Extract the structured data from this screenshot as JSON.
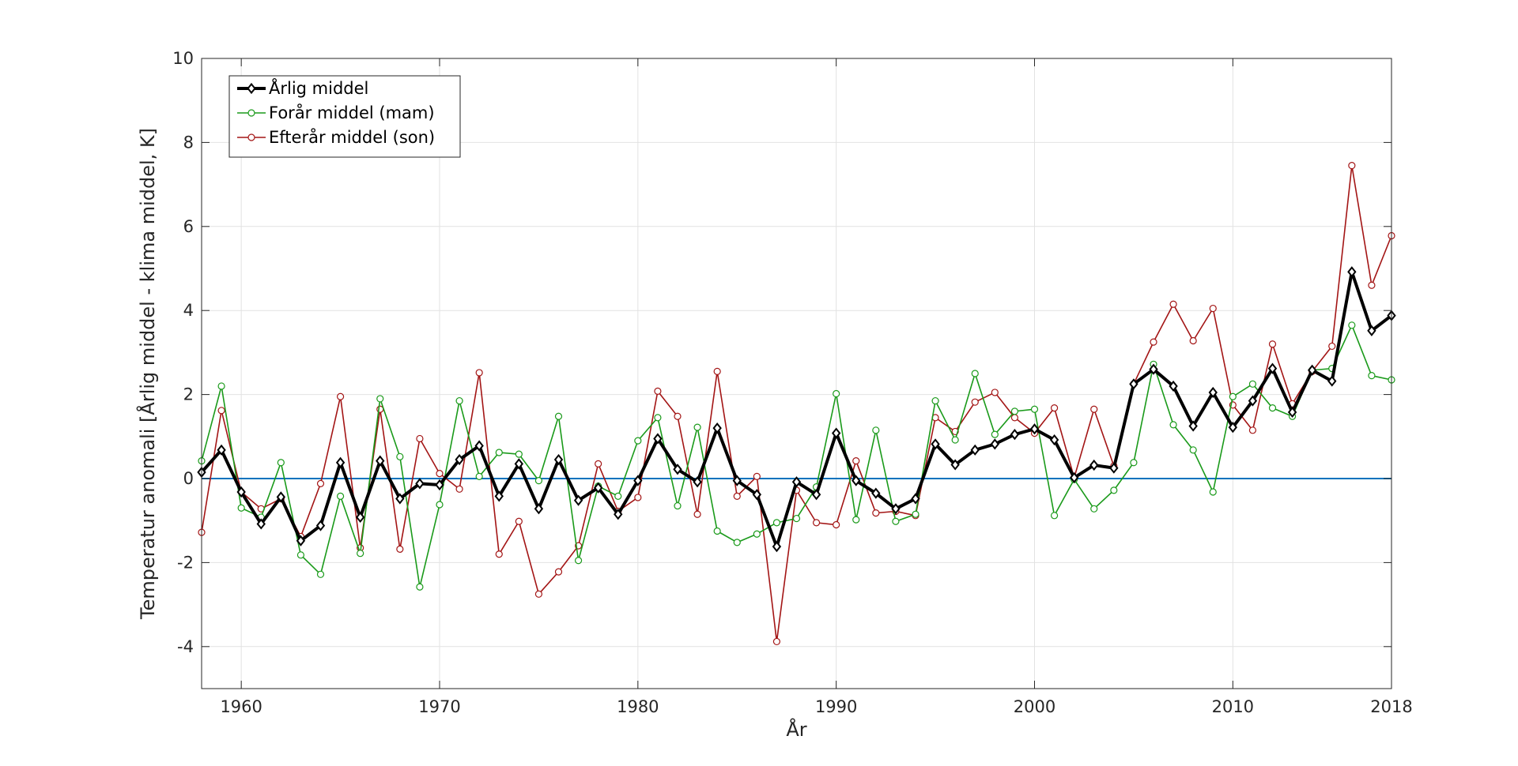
{
  "chart_data": {
    "type": "line",
    "title": "",
    "xlabel": "År",
    "ylabel": "Temperatur anomali [Årlig middel - klima middel, K]",
    "xlim": [
      1958,
      2018
    ],
    "ylim": [
      -5,
      10
    ],
    "xticks": [
      1960,
      1970,
      1980,
      1990,
      2000,
      2010,
      2018
    ],
    "yticks": [
      -4,
      -2,
      0,
      2,
      4,
      6,
      8,
      10
    ],
    "grid": true,
    "legend_position": "top-left",
    "baseline": {
      "y": 0,
      "color": "#0072bd"
    },
    "x": [
      1958,
      1959,
      1960,
      1961,
      1962,
      1963,
      1964,
      1965,
      1966,
      1967,
      1968,
      1969,
      1970,
      1971,
      1972,
      1973,
      1974,
      1975,
      1976,
      1977,
      1978,
      1979,
      1980,
      1981,
      1982,
      1983,
      1984,
      1985,
      1986,
      1987,
      1988,
      1989,
      1990,
      1991,
      1992,
      1993,
      1994,
      1995,
      1996,
      1997,
      1998,
      1999,
      2000,
      2001,
      2002,
      2003,
      2004,
      2005,
      2006,
      2007,
      2008,
      2009,
      2010,
      2011,
      2012,
      2013,
      2014,
      2015,
      2016,
      2017,
      2018
    ],
    "series": [
      {
        "name": "Årlig middel",
        "color": "#000000",
        "marker": "diamond",
        "values": [
          0.15,
          0.68,
          -0.32,
          -1.08,
          -0.44,
          -1.48,
          -1.12,
          0.38,
          -0.92,
          0.42,
          -0.48,
          -0.12,
          -0.15,
          0.45,
          0.78,
          -0.42,
          0.35,
          -0.72,
          0.45,
          -0.52,
          -0.22,
          -0.85,
          -0.05,
          0.95,
          0.22,
          -0.08,
          1.2,
          -0.05,
          -0.38,
          -1.62,
          -0.08,
          -0.38,
          1.08,
          -0.05,
          -0.35,
          -0.72,
          -0.48,
          0.82,
          0.33,
          0.68,
          0.82,
          1.05,
          1.18,
          0.92,
          0.02,
          0.32,
          0.25,
          2.25,
          2.6,
          2.2,
          1.25,
          2.05,
          1.22,
          1.85,
          2.62,
          1.58,
          2.58,
          2.32,
          4.92,
          3.52,
          3.88
        ]
      },
      {
        "name": "Forår middel (mam)",
        "color": "#1a9a1a",
        "marker": "circle",
        "values": [
          0.42,
          2.2,
          -0.7,
          -0.92,
          0.38,
          -1.82,
          -2.28,
          -0.42,
          -1.78,
          1.9,
          0.52,
          -2.58,
          -0.62,
          1.85,
          0.05,
          0.62,
          0.58,
          -0.05,
          1.48,
          -1.95,
          -0.18,
          -0.42,
          0.9,
          1.45,
          -0.65,
          1.22,
          -1.25,
          -1.52,
          -1.32,
          -1.05,
          -0.95,
          -0.2,
          2.02,
          -0.98,
          1.15,
          -1.02,
          -0.85,
          1.85,
          0.92,
          2.5,
          1.05,
          1.6,
          1.65,
          -0.88,
          -0.02,
          -0.72,
          -0.28,
          0.38,
          2.72,
          1.28,
          0.68,
          -0.32,
          1.95,
          2.25,
          1.68,
          1.48,
          2.58,
          2.62,
          3.65,
          2.45,
          2.35
        ]
      },
      {
        "name": "Efterår middel (son)",
        "color": "#a31515",
        "marker": "circle",
        "values": [
          -1.28,
          1.62,
          -0.32,
          -0.72,
          -0.48,
          -1.38,
          -0.12,
          1.95,
          -1.65,
          1.65,
          -1.68,
          0.95,
          0.12,
          -0.25,
          2.52,
          -1.8,
          -1.02,
          -2.75,
          -2.22,
          -1.6,
          0.35,
          -0.78,
          -0.45,
          2.08,
          1.48,
          -0.85,
          2.55,
          -0.42,
          0.05,
          -3.88,
          -0.28,
          -1.05,
          -1.1,
          0.42,
          -0.82,
          -0.78,
          -0.88,
          1.45,
          1.12,
          1.82,
          2.05,
          1.45,
          1.08,
          1.68,
          0.02,
          1.65,
          0.3,
          2.25,
          3.25,
          4.15,
          3.28,
          4.05,
          1.75,
          1.15,
          3.2,
          1.78,
          2.55,
          3.15,
          7.45,
          4.6,
          5.78
        ]
      }
    ]
  }
}
